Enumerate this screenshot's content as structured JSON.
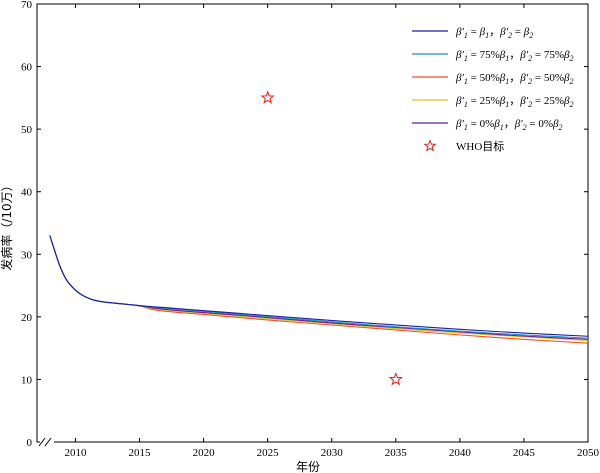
{
  "chart_data": {
    "type": "line",
    "title": "",
    "xlabel": "年份",
    "ylabel": "发病率（/10万）",
    "xlim": [
      2007,
      2050
    ],
    "ylim": [
      0,
      70
    ],
    "xticks": [
      2010,
      2015,
      2020,
      2025,
      2030,
      2035,
      2040,
      2045,
      2050
    ],
    "yticks": [
      0,
      10,
      20,
      30,
      40,
      50,
      60,
      70
    ],
    "grid": false,
    "axis_break": true,
    "legend_position": "top-right",
    "x": [
      2008,
      2009,
      2010,
      2011,
      2012,
      2013,
      2014,
      2015,
      2016,
      2017,
      2018,
      2020,
      2025,
      2030,
      2035,
      2040,
      2045,
      2050
    ],
    "series": [
      {
        "name": "β′1 = β1，β′2 = β2",
        "color": "#1f1fa0",
        "values": [
          33.0,
          26.6,
          24.1,
          22.9,
          22.4,
          22.2,
          22.0,
          21.8,
          21.6,
          21.5,
          21.3,
          21.0,
          20.2,
          19.4,
          18.7,
          18.0,
          17.4,
          16.9
        ]
      },
      {
        "name": "β′1 = 75% β1，β′2 = 75% β2",
        "color": "#1a8fd0",
        "values": [
          33.0,
          26.6,
          24.1,
          22.9,
          22.4,
          22.2,
          22.0,
          21.8,
          21.5,
          21.4,
          21.2,
          20.9,
          20.0,
          19.2,
          18.4,
          17.7,
          17.1,
          16.6
        ]
      },
      {
        "name": "β′1 = 50% β1，β′2 = 50% β2",
        "color": "#f0501e",
        "values": [
          33.0,
          26.6,
          24.1,
          22.9,
          22.4,
          22.2,
          22.0,
          21.8,
          21.1,
          20.9,
          20.7,
          20.4,
          19.5,
          18.7,
          17.9,
          17.1,
          16.4,
          15.8
        ]
      },
      {
        "name": "β′1 = 25% β1，β′2 = 25% β2",
        "color": "#e8c020",
        "values": [
          33.0,
          26.6,
          24.1,
          22.9,
          22.4,
          22.2,
          22.0,
          21.8,
          21.3,
          21.1,
          20.9,
          20.6,
          19.7,
          18.9,
          18.1,
          17.4,
          16.8,
          16.2
        ]
      },
      {
        "name": "β′1 = 0% β1，β′2 = 0% β2",
        "color": "#6a1a8a",
        "values": [
          33.0,
          26.6,
          24.1,
          22.9,
          22.4,
          22.2,
          22.0,
          21.8,
          21.4,
          21.2,
          21.0,
          20.7,
          19.9,
          19.0,
          18.3,
          17.6,
          16.9,
          16.4
        ]
      }
    ],
    "markers": {
      "name": "WHO目标",
      "color": "#e02020",
      "points": [
        {
          "x": 2025,
          "y": 55
        },
        {
          "x": 2035,
          "y": 10
        }
      ]
    },
    "legend": [
      {
        "b1p": "β′",
        "s1": "1",
        "eq1": " = ",
        "pct1": "",
        "b1": "β",
        "s1b": "1",
        "sep": "，",
        "b2p": "β′",
        "s2": "2",
        "eq2": " = ",
        "pct2": "",
        "b2": "β",
        "s2b": "2"
      },
      {
        "b1p": "β′",
        "s1": "1",
        "eq1": " = ",
        "pct1": "75%",
        "b1": "β",
        "s1b": "1",
        "sep": "，",
        "b2p": "β′",
        "s2": "2",
        "eq2": " = ",
        "pct2": "75%",
        "b2": "β",
        "s2b": "2"
      },
      {
        "b1p": "β′",
        "s1": "1",
        "eq1": " = ",
        "pct1": "50%",
        "b1": "β",
        "s1b": "1",
        "sep": "，",
        "b2p": "β′",
        "s2": "2",
        "eq2": " = ",
        "pct2": "50%",
        "b2": "β",
        "s2b": "2"
      },
      {
        "b1p": "β′",
        "s1": "1",
        "eq1": " = ",
        "pct1": "25%",
        "b1": "β",
        "s1b": "1",
        "sep": "，",
        "b2p": "β′",
        "s2": "2",
        "eq2": " = ",
        "pct2": "25%",
        "b2": "β",
        "s2b": "2"
      },
      {
        "b1p": "β′",
        "s1": "1",
        "eq1": " = ",
        "pct1": "0%",
        "b1": "β",
        "s1b": "1",
        "sep": "，",
        "b2p": "β′",
        "s2": "2",
        "eq2": " = ",
        "pct2": "0%",
        "b2": "β",
        "s2b": "2"
      }
    ],
    "legend_marker_label": "WHO目标"
  }
}
